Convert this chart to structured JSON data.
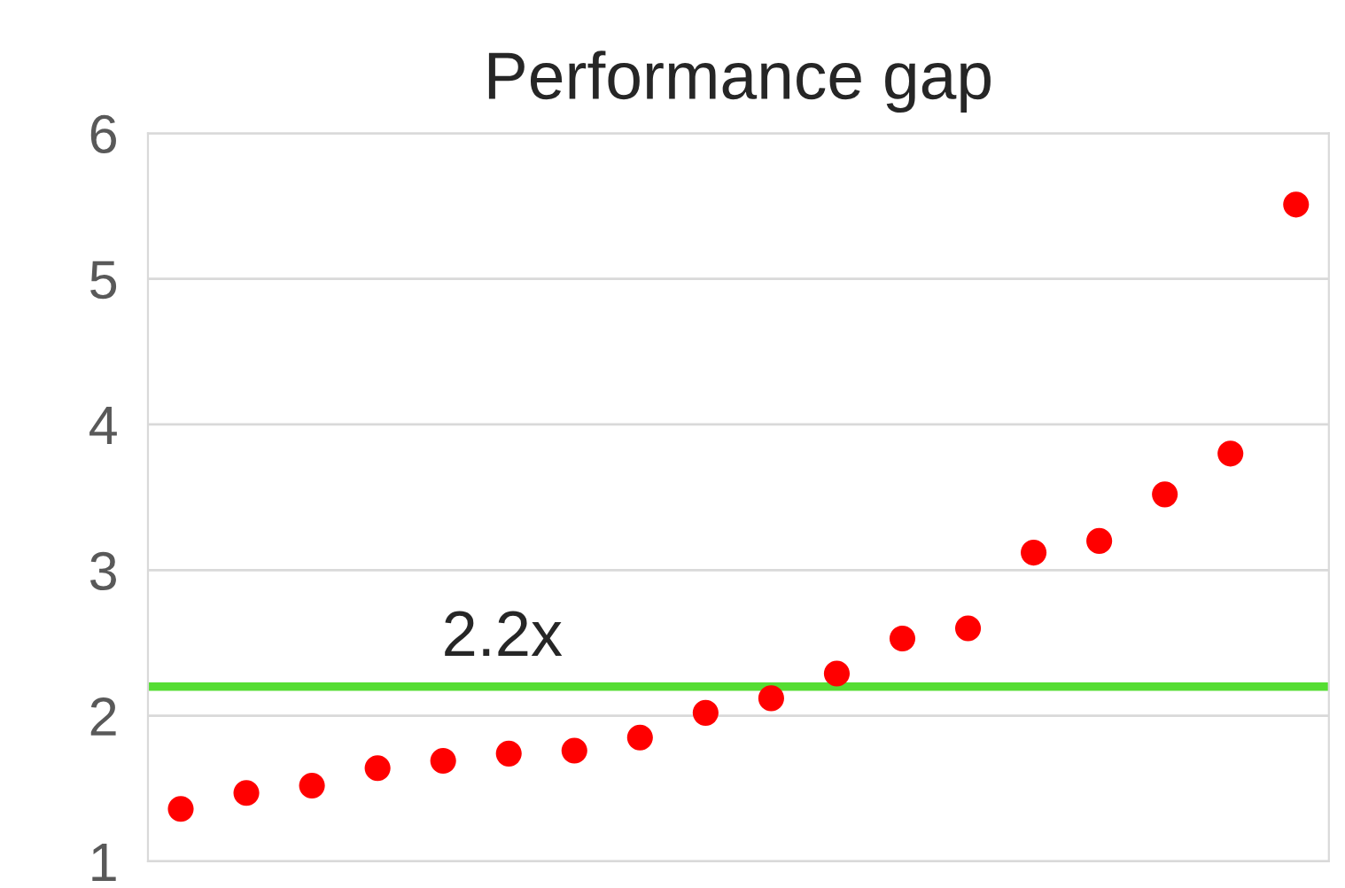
{
  "chart_data": {
    "type": "scatter",
    "title": "Performance gap",
    "categories": [
      null,
      null,
      null,
      null,
      null,
      null,
      null,
      null,
      null,
      null,
      null,
      null,
      null,
      null,
      null,
      null,
      null,
      null
    ],
    "series": [
      {
        "color": "#ff0000",
        "values": [
          1.36,
          1.47,
          1.52,
          1.64,
          1.69,
          1.74,
          1.76,
          1.85,
          2.02,
          2.12,
          2.29,
          2.53,
          2.6,
          3.12,
          3.2,
          3.52,
          3.8,
          5.51
        ]
      }
    ],
    "ylim": [
      1,
      6
    ],
    "yticks": [
      1,
      2,
      3,
      4,
      5,
      6
    ],
    "grid": "y",
    "tick_labels": "y",
    "marker": "circle",
    "ref_lines": [
      {
        "axis": "y",
        "value": 2.2,
        "label": "2.2x",
        "color": "#55dd33",
        "line_style": "solid"
      }
    ]
  }
}
